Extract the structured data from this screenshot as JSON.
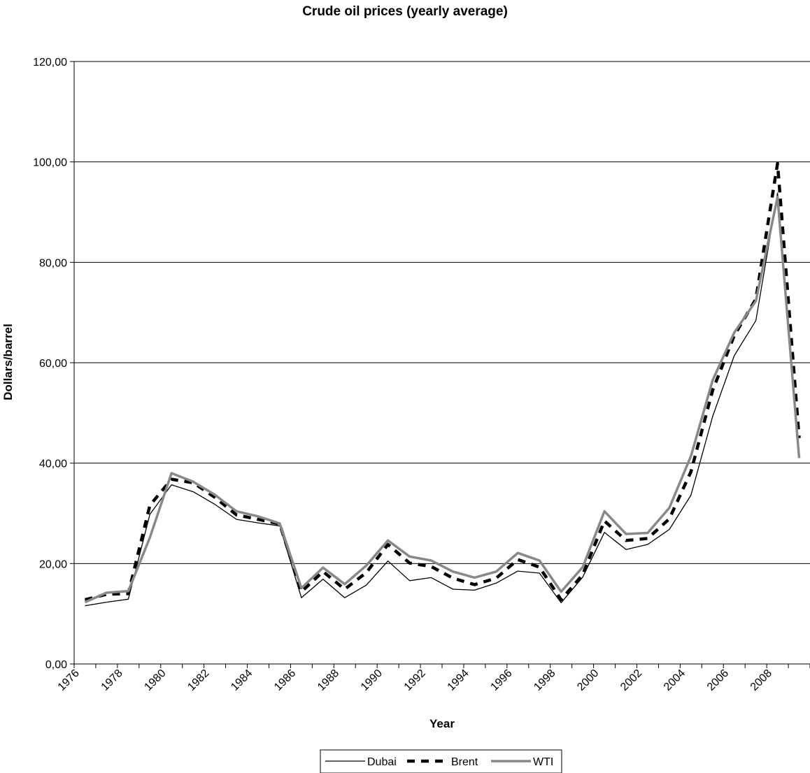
{
  "chart_data": {
    "type": "line",
    "title": "Crude oil prices (yearly average)",
    "xlabel": "Year",
    "ylabel": "Dollars/barrel",
    "ylim": [
      0,
      120
    ],
    "y_ticks": [
      "0,00",
      "20,00",
      "40,00",
      "60,00",
      "80,00",
      "100,00",
      "120,00"
    ],
    "x_tick_labels": [
      "1976",
      "1978",
      "1980",
      "1982",
      "1984",
      "1986",
      "1988",
      "1990",
      "1992",
      "1994",
      "1996",
      "1998",
      "2000",
      "2002",
      "2004",
      "2006",
      "2008"
    ],
    "x": [
      1976,
      1977,
      1978,
      1979,
      1980,
      1981,
      1982,
      1983,
      1984,
      1985,
      1986,
      1987,
      1988,
      1989,
      1990,
      1991,
      1992,
      1993,
      1994,
      1995,
      1996,
      1997,
      1998,
      1999,
      2000,
      2001,
      2002,
      2003,
      2004,
      2005,
      2006,
      2007,
      2008,
      2009
    ],
    "grid": true,
    "legend_position": "bottom",
    "series": [
      {
        "name": "Dubai",
        "color": "#000000",
        "style": "solid-thin",
        "values": [
          11.6,
          12.3,
          12.9,
          29.8,
          35.7,
          34.3,
          31.8,
          28.8,
          28.1,
          27.5,
          13.2,
          16.9,
          13.2,
          15.7,
          20.5,
          16.6,
          17.2,
          14.9,
          14.7,
          16.1,
          18.5,
          18.1,
          12.2,
          17.3,
          26.2,
          22.8,
          23.8,
          26.8,
          33.6,
          49.3,
          61.4,
          68.4,
          93.8,
          41.3
        ]
      },
      {
        "name": "Brent",
        "color": "#000000",
        "style": "dashed-bold",
        "values": [
          12.8,
          13.9,
          14.0,
          31.6,
          36.8,
          36.1,
          33.2,
          29.7,
          28.8,
          27.9,
          14.4,
          18.4,
          14.9,
          18.2,
          23.8,
          20.1,
          19.4,
          17.1,
          15.8,
          17.1,
          20.8,
          19.3,
          12.8,
          17.8,
          28.5,
          24.6,
          25.0,
          28.9,
          38.3,
          54.5,
          65.4,
          72.7,
          99.7,
          45.0
        ]
      },
      {
        "name": "WTI",
        "color": "#888888",
        "style": "solid-gray",
        "values": [
          12.3,
          14.2,
          14.5,
          25.2,
          38.0,
          36.3,
          33.7,
          30.4,
          29.4,
          28.0,
          15.1,
          19.2,
          15.9,
          19.6,
          24.6,
          21.4,
          20.6,
          18.4,
          17.2,
          18.4,
          22.1,
          20.6,
          14.4,
          19.3,
          30.4,
          25.9,
          26.1,
          31.1,
          41.4,
          56.5,
          66.0,
          72.3,
          93.0,
          41.0
        ]
      }
    ]
  }
}
